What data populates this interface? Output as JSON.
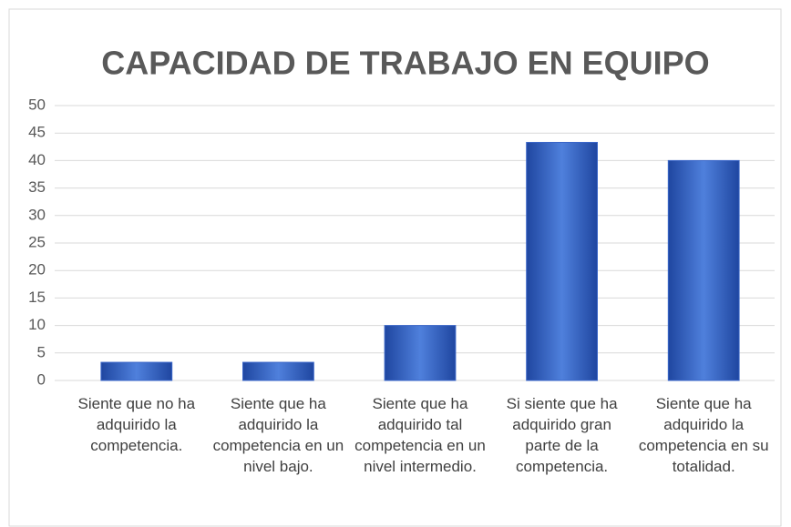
{
  "chart_data": {
    "type": "bar",
    "title": "CAPACIDAD DE TRABAJO EN EQUIPO",
    "categories": [
      "Siente que no ha adquirido la competencia.",
      "Siente que ha adquirido la competencia en un nivel bajo.",
      "Siente que ha adquirido tal competencia en un nivel intermedio.",
      "Si siente que ha adquirido gran parte de la competencia.",
      "Siente que ha adquirido la competencia en su totalidad."
    ],
    "values": [
      3.3,
      3.3,
      10,
      43.3,
      40
    ],
    "color": "#3a66c8",
    "ylim": [
      0,
      50
    ],
    "yticks": [
      0,
      5,
      10,
      15,
      20,
      25,
      30,
      35,
      40,
      45,
      50
    ],
    "grid": true
  }
}
